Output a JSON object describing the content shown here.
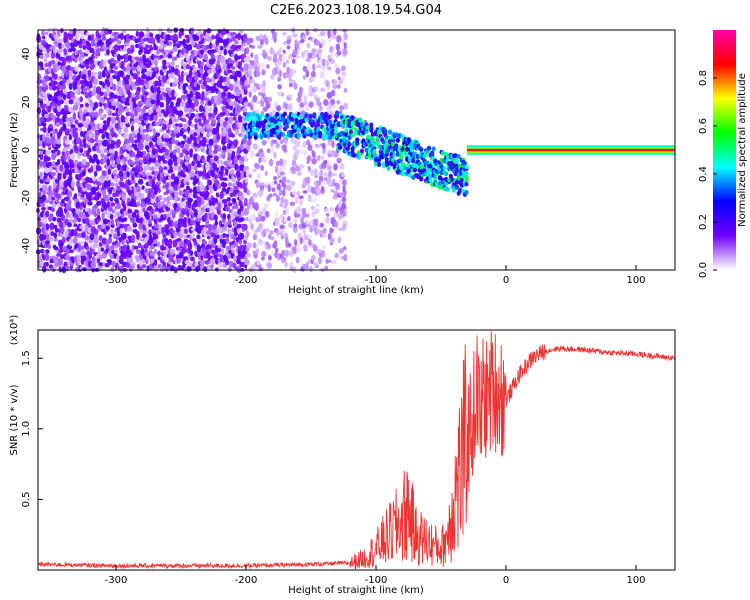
{
  "chart_data": [
    {
      "type": "heatmap",
      "title": "C2E6.2023.108.19.54.G04",
      "xlabel": "Height of straight line (km)",
      "ylabel": "Frequency (Hz)",
      "xlim": [
        -360,
        130
      ],
      "ylim": [
        -50,
        50
      ],
      "xticks": [
        "-300",
        "-200",
        "-100",
        "0",
        "100"
      ],
      "xtick_values": [
        -300,
        -200,
        -100,
        0,
        100
      ],
      "yticks": [
        "40",
        "20",
        "0",
        "-20",
        "-40"
      ],
      "ytick_values": [
        40,
        20,
        0,
        -20,
        -40
      ],
      "colorbar": {
        "label": "Normalized spectral amplitude",
        "range": [
          0,
          1
        ],
        "ticks": [
          "0.0",
          "0.2",
          "0.4",
          "0.6",
          "0.8"
        ],
        "tick_values": [
          0.0,
          0.2,
          0.4,
          0.6,
          0.8
        ],
        "colors": [
          "#ffffff",
          "#7000ff",
          "#0000ff",
          "#00ffff",
          "#00ff00",
          "#ffff00",
          "#ff0000",
          "#ff00aa"
        ]
      },
      "regions": [
        {
          "x_range": [
            -360,
            -200
          ],
          "freq_range": [
            -50,
            50
          ],
          "level": 0.1,
          "description_level": "noise"
        },
        {
          "x_range": [
            -200,
            -125
          ],
          "freq_range": [
            -50,
            50
          ],
          "level": 0.05,
          "description_level": "faint noise"
        },
        {
          "x_range": [
            -200,
            -130
          ],
          "freq_center": 10,
          "level": 0.3
        },
        {
          "x_range": [
            -130,
            -30
          ],
          "freq_center_start": 8,
          "freq_center_end": -12,
          "level": 0.35
        },
        {
          "x_range": [
            -30,
            130
          ],
          "freq_center": 0,
          "level": 0.85
        }
      ]
    },
    {
      "type": "line",
      "xlabel": "Height of straight line (km)",
      "ylabel": "SNR (10 * v/v)",
      "y_multiplier": "(x10⁴)",
      "xlim": [
        -360,
        130
      ],
      "ylim": [
        0,
        1.7
      ],
      "xticks": [
        "-300",
        "-200",
        "-100",
        "0",
        "100"
      ],
      "xtick_values": [
        -300,
        -200,
        -100,
        0,
        100
      ],
      "yticks": [
        "0.5",
        "1.0",
        "1.5"
      ],
      "ytick_values": [
        0.5,
        1.0,
        1.5
      ],
      "color": "#ee3333",
      "series": [
        {
          "x": [
            -360,
            -300,
            -250,
            -200,
            -150,
            -120,
            -110,
            -100,
            -90,
            -80,
            -75,
            -70,
            -60,
            -50,
            -45,
            -40,
            -35,
            -30,
            -25,
            -22,
            -20,
            -18,
            -15,
            -10,
            -5,
            0,
            10,
            20,
            30,
            40,
            60,
            80,
            100,
            130
          ],
          "y": [
            0.04,
            0.03,
            0.03,
            0.03,
            0.04,
            0.05,
            0.08,
            0.15,
            0.25,
            0.35,
            0.45,
            0.25,
            0.2,
            0.15,
            0.25,
            0.5,
            0.7,
            0.9,
            1.1,
            1.3,
            1.0,
            1.25,
            1.2,
            1.3,
            1.25,
            1.2,
            1.38,
            1.5,
            1.55,
            1.57,
            1.56,
            1.54,
            1.53,
            1.5
          ]
        }
      ]
    }
  ]
}
